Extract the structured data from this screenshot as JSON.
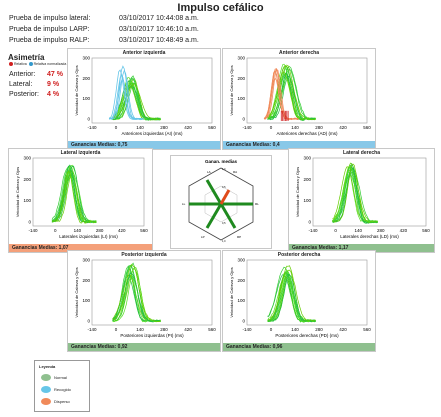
{
  "title": "Impulso cefálico",
  "tests": [
    {
      "label": "Prueba de impulso lateral:",
      "datetime": "03/10/2017 10:44:08 a.m."
    },
    {
      "label": "Prueba de impulso LARP:",
      "datetime": "03/10/2017 10:46:10 a.m."
    },
    {
      "label": "Prueba de impulso RALP:",
      "datetime": "03/10/2017 10:48:49 a.m."
    }
  ],
  "asymmetry": {
    "title": "Asimetría",
    "legend_relative": "Relativa",
    "legend_normalized": "Relativa normalizada",
    "rows": [
      {
        "name": "Anterior:",
        "value": "47 %"
      },
      {
        "name": "Lateral:",
        "value": "9 %"
      },
      {
        "name": "Posterior:",
        "value": "4 %"
      }
    ]
  },
  "colors": {
    "normal": "#33cc33",
    "recogido": "#66c6e8",
    "disperso": "#f08a5a",
    "gain_green": "#8fc08f",
    "gain_blue": "#88c8e8",
    "gain_orange": "#f4a07a",
    "diagram_green": "#1f8a1f",
    "diagram_red": "#e04a1a"
  },
  "axis": {
    "ylabel": "Velocidad de Cabeza y Ojos",
    "yticks": [
      "300",
      "200",
      "100",
      "0"
    ],
    "xticks": [
      "-140",
      "0",
      "140",
      "280",
      "420",
      "560"
    ]
  },
  "panels": [
    {
      "id": "anterior-izquierda",
      "title": "Anterior izquierda",
      "xlabel": "Anteriores izquierdas (AI) (ms)",
      "gain": "Ganancias Medias: 0,75",
      "gain_color": "gain_blue",
      "variant": "blue"
    },
    {
      "id": "anterior-derecha",
      "title": "Anterior derecha",
      "xlabel": "Anteriores derechas (AD) (ms)",
      "gain": "Ganancias Medias: 0,4",
      "gain_color": "gain_blue",
      "variant": "orange"
    },
    {
      "id": "lateral-izquierda",
      "title": "Lateral izquierda",
      "xlabel": "Laterales izquierdas (LI) (ms)",
      "gain": "Ganancias Medias: 1,07",
      "gain_color": "gain_orange",
      "variant": "green"
    },
    {
      "id": "lateral-derecha",
      "title": "Lateral derecha",
      "xlabel": "Laterales derechas (LD) (ms)",
      "gain": "Ganancias Medias: 1,17",
      "gain_color": "gain_green",
      "variant": "green"
    },
    {
      "id": "posterior-izquierda",
      "title": "Posterior izquierda",
      "xlabel": "Posteriores izquierdas (PI) (ms)",
      "gain": "Ganancias Medias: 0,92",
      "gain_color": "gain_green",
      "variant": "green"
    },
    {
      "id": "posterior-derecha",
      "title": "Posterior derecha",
      "xlabel": "Posteriores derechas (PD) (ms)",
      "gain": "Ganancias Medias: 0,96",
      "gain_color": "gain_green",
      "variant": "green"
    }
  ],
  "center": {
    "title": "Ganan. medias",
    "labels": [
      "LA",
      "RA",
      "LL",
      "RL",
      "LP",
      "RP",
      "1,0",
      "0,5",
      "1,0",
      "0,5"
    ]
  },
  "legend": {
    "title": "Leyenda",
    "items": [
      {
        "label": "Normal",
        "color": "normal"
      },
      {
        "label": "Recogido",
        "color": "recogido"
      },
      {
        "label": "Disperso",
        "color": "disperso"
      }
    ]
  }
}
